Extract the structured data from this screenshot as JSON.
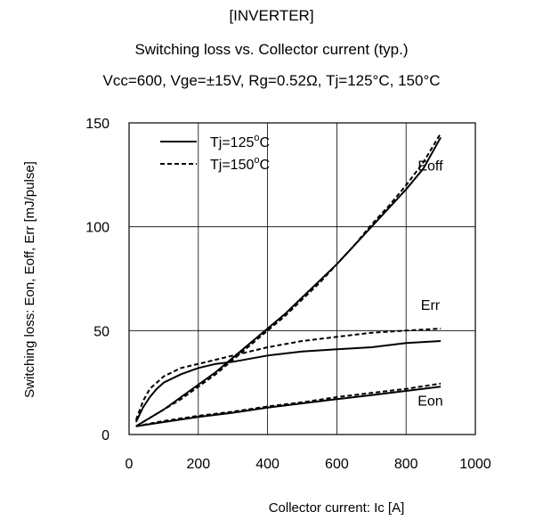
{
  "header": {
    "section": "[INVERTER]",
    "title": "Switching loss vs. Collector current (typ.)",
    "conditions": "Vcc=600, Vge=±15V, Rg=0.52Ω, Tj=125°C, 150°C"
  },
  "chart_data": {
    "type": "line",
    "title": "Switching loss vs. Collector current (typ.)",
    "xlabel": "Collector current: Ic [A]",
    "ylabel": "Switching loss: Eon, Eoff, Err [mJ/pulse]",
    "xlim": [
      0,
      1000
    ],
    "ylim": [
      0,
      150
    ],
    "xticks": [
      0,
      200,
      400,
      600,
      800,
      1000
    ],
    "yticks": [
      0,
      50,
      100,
      150
    ],
    "grid": true,
    "legend": {
      "placement": "top-left",
      "entries": [
        {
          "label_prefix": "Tj=125",
          "label_sup": "o",
          "label_suffix": "C",
          "style": "solid"
        },
        {
          "label_prefix": "Tj=150",
          "label_sup": "o",
          "label_suffix": "C",
          "style": "dashed"
        }
      ]
    },
    "curve_labels": [
      {
        "text": "Eoff",
        "x": 870,
        "y": 127
      },
      {
        "text": "Err",
        "x": 870,
        "y": 60
      },
      {
        "text": "Eon",
        "x": 870,
        "y": 14
      }
    ],
    "series": [
      {
        "name": "Eoff Tj=125°C",
        "style": "solid",
        "x": [
          20,
          50,
          100,
          150,
          200,
          250,
          300,
          350,
          400,
          450,
          500,
          550,
          600,
          650,
          700,
          750,
          800,
          850,
          900
        ],
        "y": [
          4,
          7,
          12,
          18,
          24,
          30,
          37,
          44,
          51,
          58,
          66,
          74,
          82,
          91,
          100,
          109,
          118,
          128,
          143
        ]
      },
      {
        "name": "Eoff Tj=150°C",
        "style": "dashed",
        "x": [
          20,
          50,
          100,
          150,
          200,
          250,
          300,
          350,
          400,
          450,
          500,
          550,
          600,
          650,
          700,
          750,
          800,
          850,
          900
        ],
        "y": [
          4,
          7,
          12,
          17,
          23,
          29,
          36,
          43,
          50,
          57,
          65,
          73,
          82,
          91,
          101,
          110,
          120,
          131,
          145
        ]
      },
      {
        "name": "Err Tj=125°C",
        "style": "solid",
        "x": [
          20,
          40,
          60,
          80,
          100,
          150,
          200,
          250,
          300,
          400,
          500,
          600,
          700,
          800,
          900
        ],
        "y": [
          6,
          13,
          18,
          22,
          25,
          29,
          32,
          34,
          35,
          38,
          40,
          41,
          42,
          44,
          45
        ]
      },
      {
        "name": "Err Tj=150°C",
        "style": "dashed",
        "x": [
          20,
          40,
          60,
          80,
          100,
          150,
          200,
          250,
          300,
          400,
          500,
          600,
          700,
          800,
          900
        ],
        "y": [
          7,
          16,
          22,
          25,
          28,
          32,
          34,
          36,
          38,
          42,
          45,
          47,
          49,
          50,
          51
        ]
      },
      {
        "name": "Eon Tj=125°C",
        "style": "solid",
        "x": [
          20,
          100,
          200,
          300,
          400,
          500,
          600,
          700,
          800,
          900
        ],
        "y": [
          4,
          6,
          8.5,
          10.5,
          13,
          15,
          17,
          19,
          21,
          23
        ]
      },
      {
        "name": "Eon Tj=150°C",
        "style": "dashed",
        "x": [
          20,
          100,
          200,
          300,
          400,
          500,
          600,
          700,
          800,
          900
        ],
        "y": [
          4,
          6.5,
          9,
          11,
          13.5,
          15.5,
          18,
          20,
          22,
          24.5
        ]
      }
    ]
  }
}
